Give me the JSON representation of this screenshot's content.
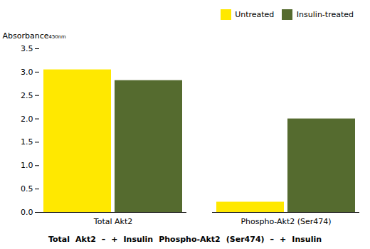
{
  "chart_data": {
    "type": "bar",
    "y_label": "Absorbance₄₅₀ₙₘ",
    "categories": [
      "Total Akt2",
      "Phospho-Akt2 (Ser474)"
    ],
    "series": [
      {
        "name": "Untreated",
        "color": "#FFE800",
        "values": [
          3.05,
          0.22
        ]
      },
      {
        "name": "Insulin-treated",
        "color": "#556B2F",
        "values": [
          2.82,
          2.0
        ]
      }
    ],
    "ylim": [
      0,
      3.5
    ],
    "yticks": [
      {
        "value": 0,
        "label": "0.0"
      },
      {
        "value": 0.5,
        "label": "0.5"
      },
      {
        "value": 1,
        "label": "1.0"
      },
      {
        "value": 1.5,
        "label": "1.5"
      },
      {
        "value": 2,
        "label": "2.0"
      },
      {
        "value": 2.5,
        "label": "2.5"
      },
      {
        "value": 3,
        "label": "3.0"
      },
      {
        "value": 3.5,
        "label": "3.5"
      }
    ],
    "legend": "upper right",
    "grid": false,
    "annotations": [
      "Total",
      "Akt2",
      "–",
      "+",
      "Insulin",
      "Phospho-Akt2",
      "(Ser474)",
      "–",
      "+",
      "Insulin"
    ]
  }
}
